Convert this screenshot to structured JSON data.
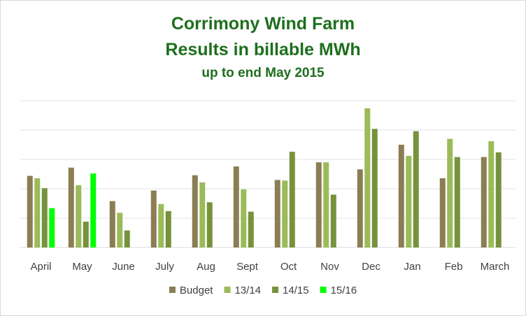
{
  "chart_data": {
    "type": "bar",
    "title": "Corrimony Wind Farm",
    "subtitle": "Results in billable MWh",
    "subtitle2": "up to end May 2015",
    "xlabel": "",
    "ylabel": "",
    "ylim": [
      0,
      250
    ],
    "yticks": [
      0,
      50,
      100,
      150,
      200,
      250
    ],
    "y_tick_labels_shown": false,
    "grid": true,
    "legend_position": "bottom",
    "categories": [
      "April",
      "May",
      "June",
      "July",
      "Aug",
      "Sept",
      "Oct",
      "Nov",
      "Dec",
      "Jan",
      "Feb",
      "March"
    ],
    "series": [
      {
        "name": "Budget",
        "color": "#8b7d54",
        "values": [
          122,
          136,
          79,
          97,
          123,
          138,
          115,
          145,
          133,
          175,
          118,
          154
        ]
      },
      {
        "name": "13/14",
        "color": "#9bbb59",
        "values": [
          118,
          106,
          59,
          74,
          111,
          99,
          114,
          145,
          237,
          156,
          185,
          181
        ]
      },
      {
        "name": "14/15",
        "color": "#76923c",
        "values": [
          101,
          44,
          29,
          62,
          77,
          61,
          163,
          90,
          202,
          198,
          154,
          162
        ]
      },
      {
        "name": "15/16",
        "color": "#00ff00",
        "values": [
          67,
          126,
          null,
          null,
          null,
          null,
          null,
          null,
          null,
          null,
          null,
          null
        ]
      }
    ]
  }
}
